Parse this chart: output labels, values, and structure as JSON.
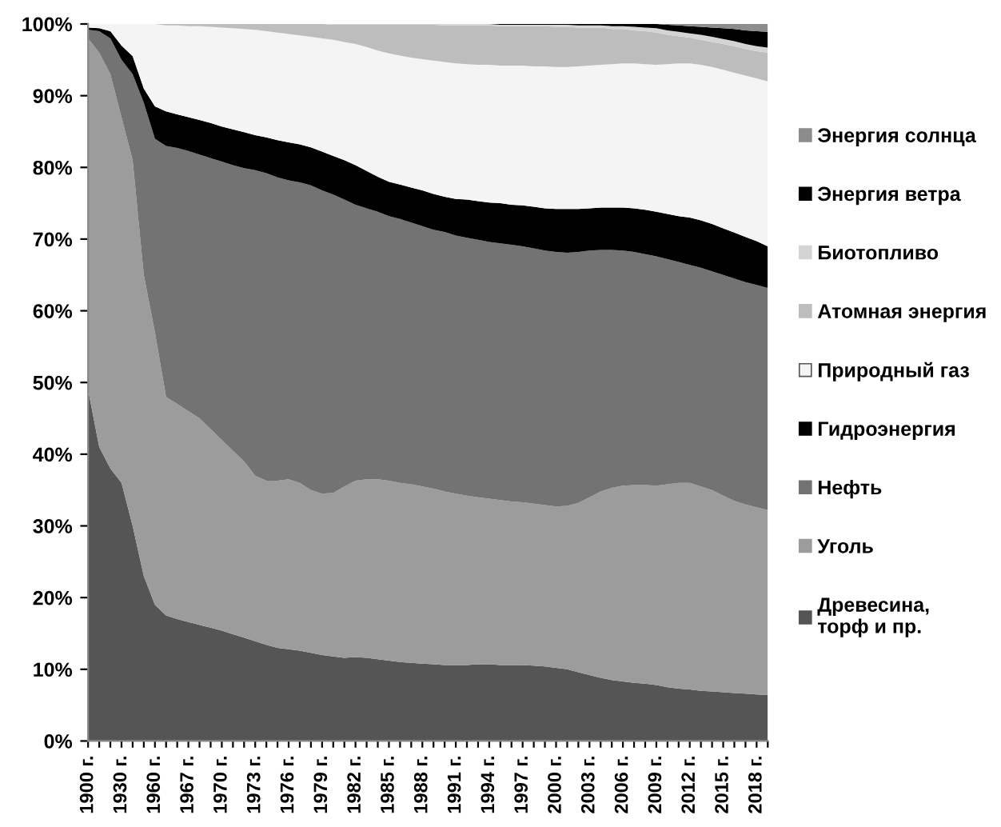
{
  "chart_data": {
    "type": "area",
    "stacked": true,
    "legend": "right",
    "grid": false,
    "categories": [
      "1900 г.",
      null,
      null,
      "1930 г.",
      null,
      null,
      "1960 г.",
      null,
      null,
      "1967 г.",
      null,
      null,
      "1970 г.",
      null,
      null,
      "1973 г.",
      null,
      null,
      "1976 г.",
      null,
      null,
      "1979 г.",
      null,
      null,
      "1982 г.",
      null,
      null,
      "1985 г.",
      null,
      null,
      "1988 г.",
      null,
      null,
      "1991 г.",
      null,
      null,
      "1994 г.",
      null,
      null,
      "1997 г.",
      null,
      null,
      "2000 г.",
      null,
      null,
      "2003 г.",
      null,
      null,
      "2006 г.",
      null,
      null,
      "2009 г.",
      null,
      null,
      "2012 г.",
      null,
      null,
      "2015 г.",
      null,
      null,
      "2018 г.",
      null
    ],
    "ylim": [
      0,
      100
    ],
    "yticks": [
      {
        "value": 0,
        "label": "0%"
      },
      {
        "value": 10,
        "label": "10%"
      },
      {
        "value": 20,
        "label": "20%"
      },
      {
        "value": 30,
        "label": "30%"
      },
      {
        "value": 40,
        "label": "40%"
      },
      {
        "value": 50,
        "label": "50%"
      },
      {
        "value": 60,
        "label": "60%"
      },
      {
        "value": 70,
        "label": "70%"
      },
      {
        "value": 80,
        "label": "80%"
      },
      {
        "value": 90,
        "label": "90%"
      },
      {
        "value": 100,
        "label": "100%"
      }
    ],
    "series": [
      {
        "name": "Древесина,\nторф и пр.",
        "color": "#555555",
        "values": [
          49,
          41,
          38,
          36,
          30,
          23,
          19,
          17.5,
          17,
          16.6,
          16.2,
          15.8,
          15.4,
          14.9,
          14.4,
          13.9,
          13.4,
          13.0,
          12.8,
          12.6,
          12.3,
          12.0,
          11.8,
          11.6,
          11.7,
          11.6,
          11.4,
          11.2,
          11.0,
          10.9,
          10.8,
          10.7,
          10.6,
          10.6,
          10.6,
          10.7,
          10.7,
          10.6,
          10.6,
          10.6,
          10.5,
          10.4,
          10.2,
          10.0,
          9.6,
          9.2,
          8.8,
          8.5,
          8.3,
          8.1,
          8.0,
          7.8,
          7.5,
          7.3,
          7.2,
          7.0,
          6.9,
          6.8,
          6.7,
          6.6,
          6.5,
          6.4
        ]
      },
      {
        "name": "Уголь",
        "color": "#9c9c9c",
        "values": [
          49,
          55,
          55,
          51,
          51,
          42,
          38,
          30.5,
          30,
          29.4,
          28.8,
          27.7,
          26.6,
          25.6,
          24.6,
          23.1,
          22.9,
          23.3,
          23.7,
          23.4,
          22.7,
          22.5,
          22.8,
          23.9,
          24.6,
          24.9,
          25.1,
          25.1,
          25.0,
          24.9,
          24.7,
          24.5,
          24.2,
          23.9,
          23.6,
          23.3,
          23.1,
          23.0,
          22.8,
          22.7,
          22.6,
          22.5,
          22.5,
          22.8,
          23.6,
          24.8,
          26.0,
          26.8,
          27.3,
          27.6,
          27.7,
          27.8,
          28.3,
          28.7,
          28.8,
          28.5,
          28.1,
          27.4,
          26.8,
          26.4,
          26.1,
          25.8
        ]
      },
      {
        "name": "Нефть",
        "color": "#737373",
        "values": [
          1.2,
          3,
          5,
          8,
          12,
          24,
          27,
          35,
          35.7,
          36.3,
          36.8,
          37.8,
          38.8,
          39.8,
          40.9,
          42.6,
          42.9,
          42.3,
          41.7,
          41.9,
          42.5,
          42.3,
          41.6,
          40,
          38.5,
          37.8,
          37.3,
          36.9,
          36.8,
          36.5,
          36.3,
          36.1,
          36.2,
          36,
          36,
          35.9,
          35.8,
          35.8,
          35.8,
          35.7,
          35.6,
          35.5,
          35.5,
          35.3,
          35,
          34.4,
          33.7,
          33.2,
          32.8,
          32.5,
          32.2,
          32,
          31.4,
          30.8,
          30.4,
          30.5,
          30.5,
          30.8,
          31,
          31,
          31,
          31
        ]
      },
      {
        "name": "Гидроэнергия",
        "color": "#000000",
        "values": [
          0.3,
          0.4,
          1,
          2,
          2.5,
          2,
          4.5,
          4.8,
          4.7,
          4.7,
          4.8,
          4.9,
          4.9,
          5,
          5,
          4.9,
          5,
          5.2,
          5.3,
          5.3,
          5.3,
          5.4,
          5.4,
          5.5,
          5.5,
          5.2,
          4.9,
          4.8,
          4.8,
          4.9,
          5,
          5,
          4.9,
          5.1,
          5.3,
          5.4,
          5.5,
          5.6,
          5.6,
          5.7,
          5.8,
          5.9,
          6,
          6.1,
          6,
          5.9,
          5.9,
          5.9,
          6,
          6.1,
          6.2,
          6.2,
          6.3,
          6.4,
          6.6,
          6.6,
          6.6,
          6.5,
          6.4,
          6.3,
          6.1,
          5.8
        ]
      },
      {
        "name": "Природный газ",
        "color": "#f4f4f4",
        "values": [
          0.5,
          0.6,
          1,
          3,
          4.5,
          9,
          11.5,
          12,
          12.4,
          12.7,
          13.1,
          13.4,
          13.8,
          14.1,
          14.4,
          14.7,
          14.8,
          15,
          15.1,
          15.2,
          15.4,
          15.8,
          16.2,
          16.5,
          16.9,
          17.3,
          17.6,
          17.9,
          18,
          18.1,
          18.3,
          18.6,
          18.8,
          18.9,
          18.9,
          19,
          19.2,
          19.2,
          19.4,
          19.5,
          19.6,
          19.8,
          19.8,
          19.8,
          19.9,
          19.9,
          19.9,
          20,
          20.1,
          20.2,
          20.3,
          20.5,
          20.9,
          21.3,
          21.5,
          21.7,
          21.9,
          22.1,
          22.3,
          22.5,
          22.7,
          23
        ]
      },
      {
        "name": "Атомная энергия",
        "color": "#bdbdbd",
        "values": [
          0,
          0,
          0,
          0,
          0,
          0,
          0,
          0.2,
          0.2,
          0.3,
          0.3,
          0.4,
          0.5,
          0.6,
          0.7,
          0.8,
          1.0,
          1.2,
          1.4,
          1.6,
          1.8,
          2.0,
          2.1,
          2.4,
          2.7,
          3.1,
          3.6,
          4.0,
          4.3,
          4.6,
          4.8,
          5.0,
          5.1,
          5.3,
          5.4,
          5.5,
          5.5,
          5.5,
          5.5,
          5.5,
          5.6,
          5.6,
          5.6,
          5.6,
          5.4,
          5.3,
          5.2,
          4.9,
          4.8,
          4.6,
          4.6,
          4.5,
          4.1,
          3.8,
          3.6,
          3.5,
          3.5,
          3.6,
          3.7,
          3.7,
          3.8,
          4.0
        ]
      },
      {
        "name": "Биотопливо",
        "color": "#d4d4d4",
        "values": [
          0,
          0,
          0,
          0,
          0,
          0,
          0,
          0,
          0,
          0,
          0,
          0,
          0,
          0,
          0,
          0,
          0,
          0,
          0,
          0,
          0,
          0,
          0.1,
          0.1,
          0.1,
          0.1,
          0.1,
          0.1,
          0.1,
          0.1,
          0.1,
          0.1,
          0.2,
          0.2,
          0.2,
          0.2,
          0.2,
          0.2,
          0.2,
          0.2,
          0.2,
          0.2,
          0.3,
          0.3,
          0.3,
          0.3,
          0.3,
          0.4,
          0.4,
          0.5,
          0.5,
          0.6,
          0.6,
          0.6,
          0.6,
          0.7,
          0.7,
          0.7,
          0.7,
          0.7,
          0.7,
          0.7
        ]
      },
      {
        "name": "Энергия ветра",
        "color": "#000000",
        "values": [
          0,
          0,
          0,
          0,
          0,
          0,
          0,
          0,
          0,
          0,
          0,
          0,
          0,
          0,
          0,
          0,
          0,
          0,
          0,
          0,
          0,
          0,
          0,
          0,
          0,
          0,
          0,
          0,
          0,
          0,
          0,
          0,
          0,
          0,
          0,
          0,
          0,
          0.1,
          0.1,
          0.1,
          0.1,
          0.1,
          0.1,
          0.1,
          0.2,
          0.2,
          0.2,
          0.3,
          0.3,
          0.4,
          0.5,
          0.6,
          0.8,
          0.9,
          1.0,
          1.1,
          1.3,
          1.5,
          1.7,
          1.9,
          2.1,
          2.2
        ]
      },
      {
        "name": "Энергия солнца",
        "color": "#8c8c8c",
        "values": [
          0,
          0,
          0,
          0,
          0,
          0,
          0,
          0,
          0,
          0,
          0,
          0,
          0,
          0,
          0,
          0,
          0,
          0,
          0,
          0,
          0,
          0,
          0,
          0,
          0,
          0,
          0,
          0,
          0,
          0,
          0,
          0,
          0,
          0,
          0,
          0,
          0,
          0,
          0,
          0,
          0,
          0,
          0,
          0,
          0,
          0,
          0,
          0,
          0,
          0,
          0,
          0,
          0.1,
          0.2,
          0.3,
          0.4,
          0.5,
          0.6,
          0.7,
          0.9,
          1.0,
          1.1
        ]
      }
    ]
  }
}
